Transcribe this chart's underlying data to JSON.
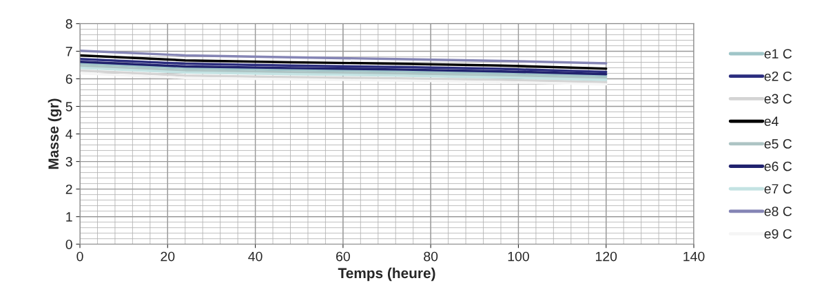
{
  "chart_data": {
    "type": "line",
    "xlabel": "Temps (heure)",
    "ylabel": "Masse (gr)",
    "x": [
      0,
      24,
      48,
      72,
      96,
      120
    ],
    "xlim": [
      0,
      140
    ],
    "xticks": [
      0,
      20,
      40,
      60,
      80,
      100,
      120,
      140
    ],
    "ylim": [
      0,
      8
    ],
    "yticks": [
      0,
      1,
      2,
      3,
      4,
      5,
      6,
      7,
      8
    ],
    "grid": true,
    "legend": "right",
    "marker": "none",
    "line_style": "solid",
    "series": [
      {
        "name": "e1 C",
        "color": "#9fc5c8",
        "values": [
          6.55,
          6.38,
          6.32,
          6.27,
          6.2,
          6.1
        ]
      },
      {
        "name": "e2 C",
        "color": "#2b2d7e",
        "values": [
          6.72,
          6.55,
          6.48,
          6.43,
          6.36,
          6.25
        ]
      },
      {
        "name": "e3 C",
        "color": "#d4d4d4",
        "values": [
          6.3,
          6.12,
          6.06,
          6.02,
          5.96,
          5.88
        ]
      },
      {
        "name": "e4",
        "color": "#000000",
        "values": [
          6.85,
          6.67,
          6.6,
          6.55,
          6.48,
          6.37
        ]
      },
      {
        "name": "e5 C",
        "color": "#adc4c4",
        "values": [
          6.47,
          6.3,
          6.24,
          6.19,
          6.12,
          6.02
        ]
      },
      {
        "name": "e6 C",
        "color": "#20226e",
        "values": [
          6.62,
          6.45,
          6.39,
          6.34,
          6.27,
          6.17
        ]
      },
      {
        "name": "e7 C",
        "color": "#c4e3e3",
        "values": [
          6.4,
          6.23,
          6.17,
          6.12,
          6.05,
          5.96
        ]
      },
      {
        "name": "e8 C",
        "color": "#8585b5",
        "values": [
          7.02,
          6.85,
          6.78,
          6.72,
          6.65,
          6.56
        ]
      },
      {
        "name": "e9 C",
        "color": "#f5f5f5",
        "values": [
          6.2,
          6.03,
          5.98,
          5.94,
          5.88,
          5.8
        ]
      }
    ]
  }
}
